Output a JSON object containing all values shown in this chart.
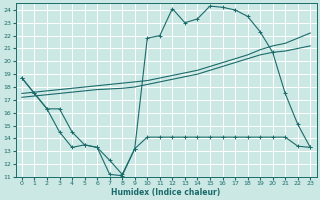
{
  "xlabel": "Humidex (Indice chaleur)",
  "bg_color": "#cce8e4",
  "grid_color": "#ffffff",
  "line_color": "#1a6b6b",
  "xlim": [
    -0.5,
    23.5
  ],
  "ylim": [
    11,
    24.5
  ],
  "yticks": [
    11,
    12,
    13,
    14,
    15,
    16,
    17,
    18,
    19,
    20,
    21,
    22,
    23,
    24
  ],
  "xticks": [
    0,
    1,
    2,
    3,
    4,
    5,
    6,
    7,
    8,
    9,
    10,
    11,
    12,
    13,
    14,
    15,
    16,
    17,
    18,
    19,
    20,
    21,
    22,
    23
  ],
  "line1_x": [
    0,
    1,
    2,
    3,
    4,
    5,
    6,
    7,
    8,
    9,
    10,
    11,
    12,
    13,
    14,
    15,
    16,
    17,
    18,
    19,
    20,
    21,
    22,
    23
  ],
  "line1_y": [
    18.7,
    17.5,
    16.3,
    16.3,
    14.5,
    13.5,
    13.3,
    11.2,
    11.1,
    13.2,
    21.8,
    22.0,
    24.1,
    23.0,
    23.3,
    24.3,
    24.2,
    24.0,
    23.5,
    22.3,
    20.7,
    17.5,
    15.1,
    13.3
  ],
  "line2_x": [
    0,
    1,
    2,
    3,
    4,
    5,
    6,
    7,
    8,
    9,
    10,
    11,
    12,
    13,
    14,
    15,
    16,
    17,
    18,
    19,
    20,
    21,
    22,
    23
  ],
  "line2_y": [
    17.5,
    17.6,
    17.7,
    17.8,
    17.9,
    18.0,
    18.1,
    18.2,
    18.3,
    18.4,
    18.5,
    18.7,
    18.9,
    19.1,
    19.3,
    19.6,
    19.9,
    20.2,
    20.5,
    20.9,
    21.2,
    21.4,
    21.8,
    22.2
  ],
  "line3_x": [
    0,
    1,
    2,
    3,
    4,
    5,
    6,
    7,
    8,
    9,
    10,
    11,
    12,
    13,
    14,
    15,
    16,
    17,
    18,
    19,
    20,
    21,
    22,
    23
  ],
  "line3_y": [
    17.2,
    17.3,
    17.4,
    17.5,
    17.6,
    17.7,
    17.8,
    17.85,
    17.9,
    18.0,
    18.2,
    18.4,
    18.6,
    18.8,
    19.0,
    19.3,
    19.6,
    19.9,
    20.2,
    20.5,
    20.7,
    20.8,
    21.0,
    21.2
  ],
  "line4_x": [
    0,
    1,
    2,
    3,
    4,
    5,
    6,
    7,
    8,
    9,
    10,
    11,
    12,
    13,
    14,
    15,
    16,
    17,
    18,
    19,
    20,
    21,
    22,
    23
  ],
  "line4_y": [
    18.7,
    17.5,
    16.3,
    14.5,
    13.3,
    13.5,
    13.3,
    12.3,
    11.2,
    13.2,
    14.1,
    14.1,
    14.1,
    14.1,
    14.1,
    14.1,
    14.1,
    14.1,
    14.1,
    14.1,
    14.1,
    14.1,
    13.4,
    13.3
  ]
}
